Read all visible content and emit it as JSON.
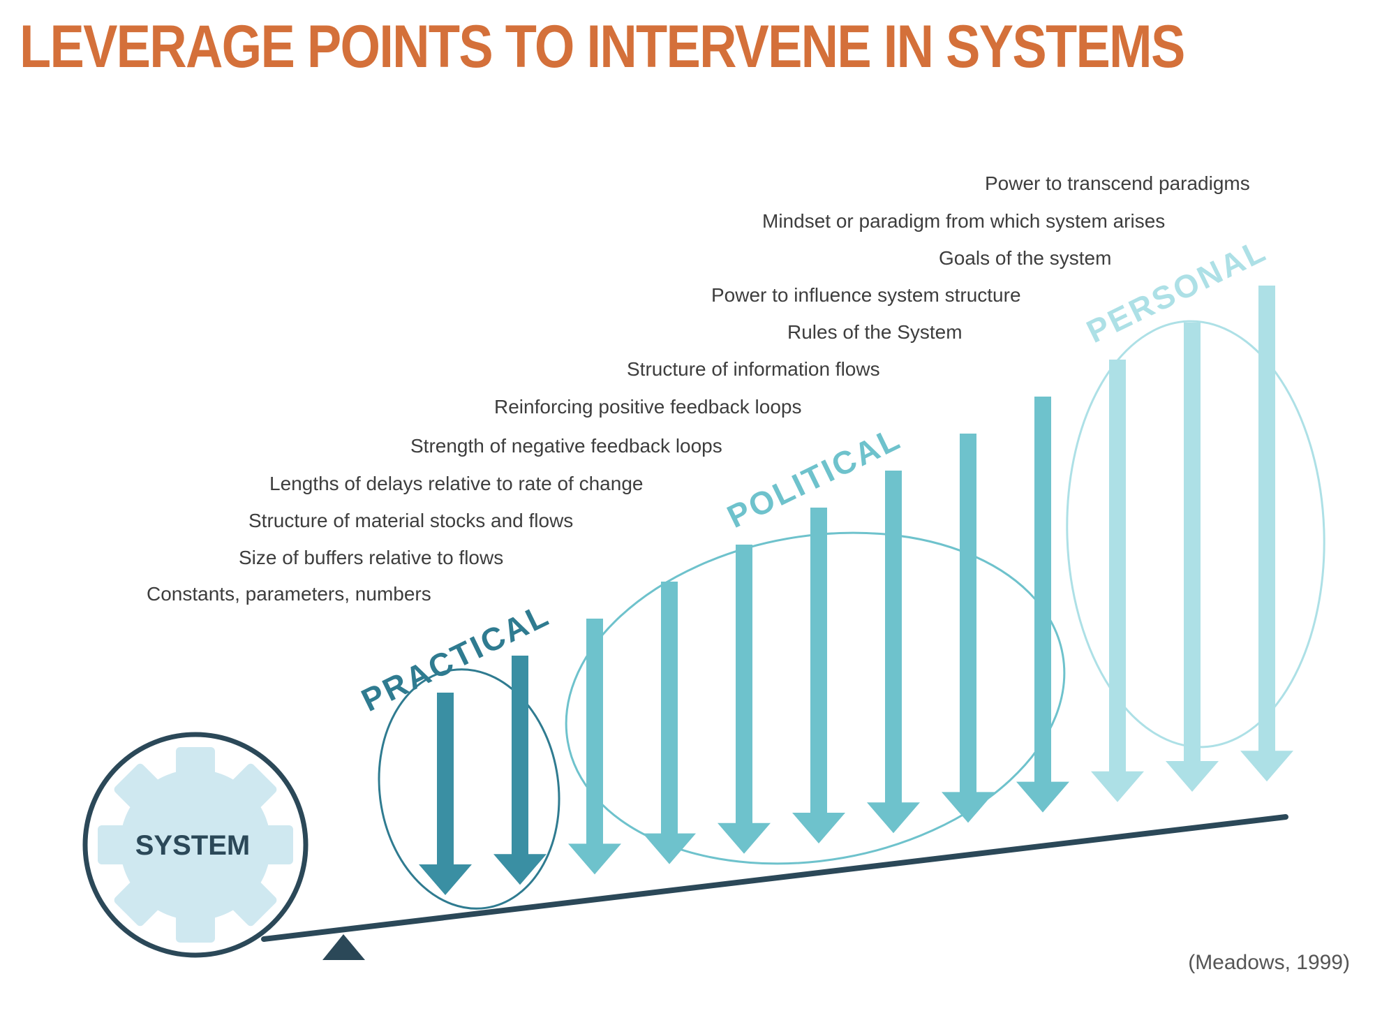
{
  "title": "LEVERAGE POINTS TO INTERVENE IN SYSTEMS",
  "citation": "(Meadows, 1999)",
  "system_label": "SYSTEM",
  "groups": {
    "practical": "PRACTICAL",
    "political": "POLITICAL",
    "personal": "PERSONAL"
  },
  "leverage_points": [
    "Constants, parameters, numbers",
    "Size of buffers relative to flows",
    "Structure of material stocks and flows",
    "Lengths of delays relative to rate of change",
    "Strength of negative feedback loops",
    "Reinforcing positive feedback loops",
    "Structure of information flows",
    "Rules of the System",
    "Power to influence system structure",
    "Goals of the system",
    "Mindset or paradigm from which system arises",
    "Power to transcend paradigms"
  ],
  "colors": {
    "title": "#d4703a",
    "practical": "#3a8fa3",
    "political": "#6ec2cc",
    "personal": "#ade0e6",
    "beam": "#2b4858",
    "gear": "#cfe8f0"
  },
  "icons": [
    "gear-icon",
    "fulcrum-icon",
    "arrow-down-icon"
  ]
}
